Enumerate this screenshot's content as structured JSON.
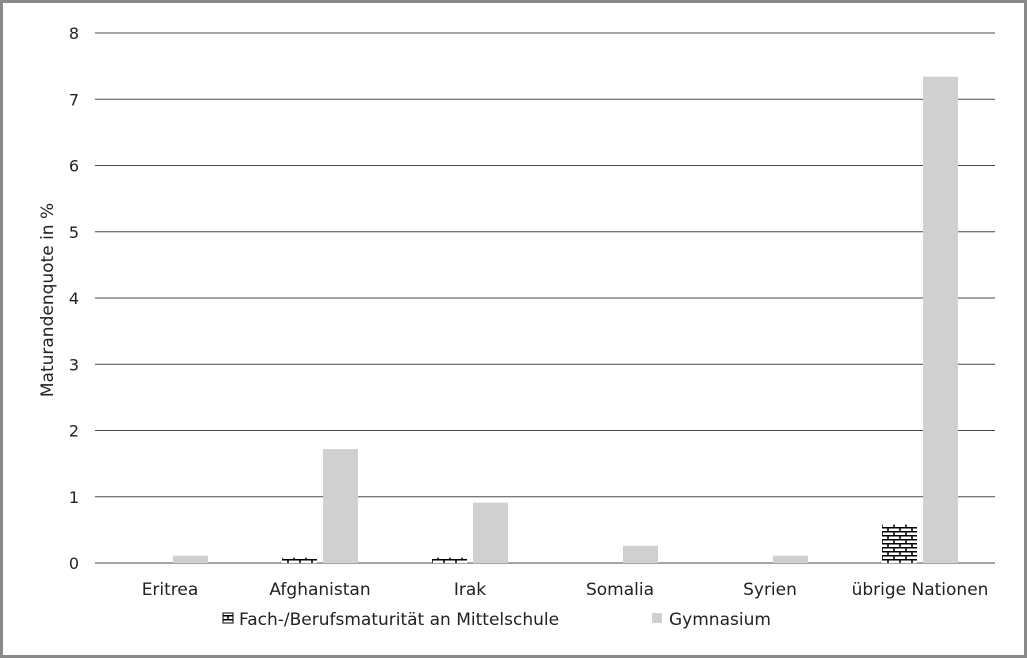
{
  "chart_data": {
    "type": "bar",
    "title": "",
    "xlabel": "",
    "ylabel": "Maturandenquote in %",
    "ylim": [
      0,
      8
    ],
    "yticks": [
      "0",
      "1",
      "2",
      "3",
      "4",
      "5",
      "6",
      "7",
      "8"
    ],
    "grid": true,
    "legend_position": "bottom",
    "categories": [
      "Eritrea",
      "Afghanistan",
      "Irak",
      "Somalia",
      "Syrien",
      "übrige Nationen"
    ],
    "series": [
      {
        "name": "Fach-/Berufsmaturität an Mittelschule",
        "values": [
          0,
          0.08,
          0.08,
          0,
          0,
          0.58
        ],
        "color": "#000000",
        "pattern": "brick"
      },
      {
        "name": "Gymnasium",
        "values": [
          0.11,
          1.72,
          0.91,
          0.26,
          0.11,
          7.34
        ],
        "color": "#d0d0d0"
      }
    ]
  }
}
